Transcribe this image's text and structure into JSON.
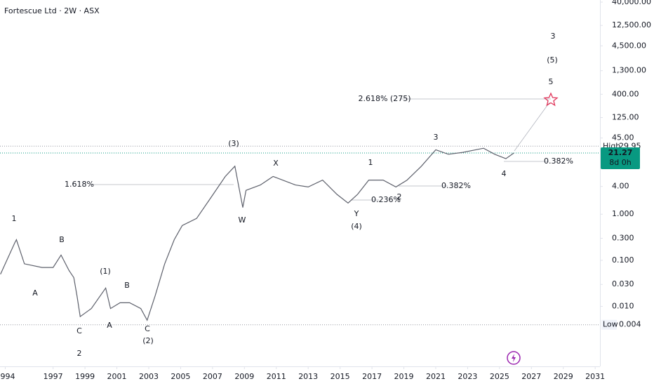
{
  "chart_data": {
    "type": "line",
    "title": "Fortescue Ltd · 2W · ASX",
    "log_scale": true,
    "x": [
      1993.7,
      1994.6,
      1994.7,
      1995.2,
      1996.3,
      1997.0,
      1997.5,
      1998.0,
      1998.3,
      1998.5,
      1998.7,
      1999.4,
      2000.3,
      2000.6,
      2001.2,
      2001.8,
      2002.5,
      2002.9,
      2003.4,
      2004.0,
      2004.6,
      2005.1,
      2006.0,
      2006.9,
      2007.8,
      2008.4,
      2008.9,
      2009.1,
      2010.0,
      2010.8,
      2012.2,
      2013.0,
      2013.9,
      2014.8,
      2015.5,
      2016.1,
      2016.8,
      2017.7,
      2018.5,
      2019.2,
      2020.1,
      2021.0,
      2021.8,
      2022.7,
      2024.0,
      2024.7,
      2025.4,
      2025.9
    ],
    "series": [
      {
        "color": "#5d606b",
        "values": [
          0.05,
          0.24,
          0.28,
          0.084,
          0.07,
          0.07,
          0.13,
          0.06,
          0.042,
          0.017,
          0.006,
          0.009,
          0.025,
          0.009,
          0.012,
          0.012,
          0.009,
          0.005,
          0.017,
          0.084,
          0.28,
          0.57,
          0.81,
          2.3,
          6.6,
          11,
          1.4,
          3.3,
          4.3,
          6.6,
          4.3,
          3.9,
          5.5,
          2.7,
          1.75,
          2.7,
          5.5,
          5.5,
          3.9,
          5.5,
          11,
          25,
          20,
          22,
          27,
          20,
          16,
          21.27
        ]
      }
    ],
    "xlim": [
      1993.67,
      2031.3
    ],
    "xticks": [
      1994,
      1997,
      1999,
      2001,
      2003,
      2005,
      2007,
      2009,
      2011,
      2013,
      2015,
      2017,
      2019,
      2021,
      2023,
      2025,
      2027,
      2029,
      2031
    ],
    "ylim": [
      0.0005,
      40000
    ],
    "yticks": [
      {
        "value": 40000,
        "label": "40,000.00"
      },
      {
        "value": 12500,
        "label": "12,500.00"
      },
      {
        "value": 4500,
        "label": "4,500.00"
      },
      {
        "value": 1300,
        "label": "1,300.00"
      },
      {
        "value": 400,
        "label": "400.00"
      },
      {
        "value": 125,
        "label": "125.00"
      },
      {
        "value": 45,
        "label": "45.00"
      },
      {
        "value": 4,
        "label": "4.00"
      },
      {
        "value": 1,
        "label": "1.000"
      },
      {
        "value": 0.3,
        "label": "0.300"
      },
      {
        "value": 0.1,
        "label": "0.100"
      },
      {
        "value": 0.03,
        "label": "0.030"
      },
      {
        "value": 0.01,
        "label": "0.010"
      }
    ],
    "high": {
      "label": "High",
      "value": 29.95
    },
    "last": {
      "value": 21.27,
      "countdown": "8d 0h",
      "color": "#089981"
    },
    "low": {
      "label": "Low",
      "value": 0.004
    },
    "annotations": [
      "1",
      "2",
      "3",
      "A",
      "B",
      "C",
      "(1)",
      "B",
      "A",
      "C",
      "(2)",
      "(3)",
      "W",
      "X",
      "Y",
      "(4)",
      "1",
      "2",
      "3",
      "4",
      "5",
      "(5)",
      "1.618%",
      "0.236%",
      "0.382%",
      "0.382%",
      "2.618% (275)"
    ]
  }
}
